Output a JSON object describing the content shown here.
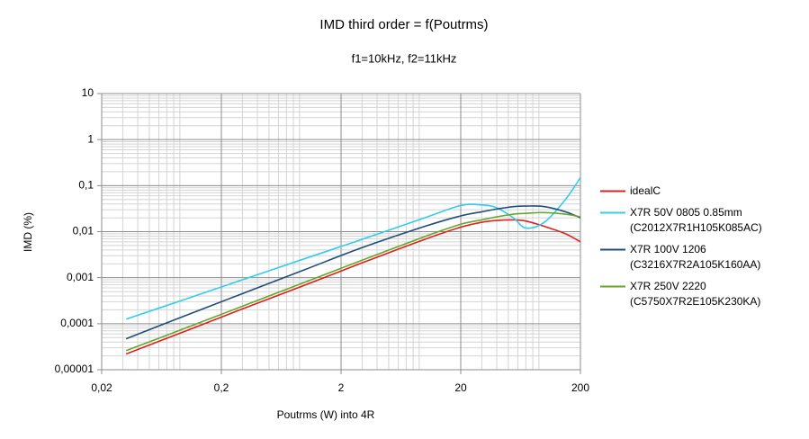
{
  "chart_data": {
    "type": "line",
    "title": "IMD third order = f(Poutrms)",
    "subtitle": "f1=10kHz, f2=11kHz",
    "x_label": "Poutrms (W) into 4R",
    "y_label": "IMD (%)",
    "x_scale": "log",
    "y_scale": "log",
    "xlim": [
      0.02,
      200
    ],
    "xticks": [
      {
        "value": 0.02,
        "label": "0,02"
      },
      {
        "value": 0.2,
        "label": "0,2"
      },
      2,
      20,
      200
    ],
    "ylim": [
      1e-05,
      10
    ],
    "yticks": [
      {
        "value": 1e-05,
        "label": "0,00001"
      },
      {
        "value": 0.0001,
        "label": "0,0001"
      },
      {
        "value": 0.001,
        "label": "0,001"
      },
      {
        "value": 0.01,
        "label": "0,01"
      },
      {
        "value": 0.1,
        "label": "0,1"
      },
      1,
      10
    ],
    "grid": true,
    "minor_grid": true,
    "legend": "right",
    "x": [
      0.032,
      0.1,
      0.3,
      1,
      3,
      10,
      20,
      30,
      40,
      55,
      70,
      100,
      150,
      200
    ],
    "series": [
      {
        "name": "idealC",
        "color": "#e0201b",
        "values": [
          2.2e-05,
          6.9e-05,
          0.00021,
          0.00069,
          0.0021,
          0.0068,
          0.0125,
          0.016,
          0.0175,
          0.018,
          0.017,
          0.013,
          0.009,
          0.006
        ]
      },
      {
        "name": "X7R 50V 0805 0.85mm\n(C2012X7R1H105K085AC)",
        "color": "#33ccee",
        "values": [
          0.000126,
          0.00034,
          0.0009,
          0.0026,
          0.0068,
          0.02,
          0.037,
          0.038,
          0.033,
          0.02,
          0.012,
          0.016,
          0.05,
          0.15
        ]
      },
      {
        "name": "X7R 100V 1206\n(C3216X7R2A105K160AA)",
        "color": "#1f4e7a",
        "values": [
          4.7e-05,
          0.00015,
          0.00045,
          0.0015,
          0.0045,
          0.013,
          0.022,
          0.027,
          0.031,
          0.035,
          0.036,
          0.035,
          0.027,
          0.02
        ]
      },
      {
        "name": "X7R 250V 2220\n(C5750X7R2E105K230KA)",
        "color": "#66a62a",
        "values": [
          2.6e-05,
          8e-05,
          0.00024,
          0.0008,
          0.0024,
          0.0078,
          0.0145,
          0.018,
          0.021,
          0.024,
          0.025,
          0.026,
          0.024,
          0.021
        ]
      }
    ]
  }
}
